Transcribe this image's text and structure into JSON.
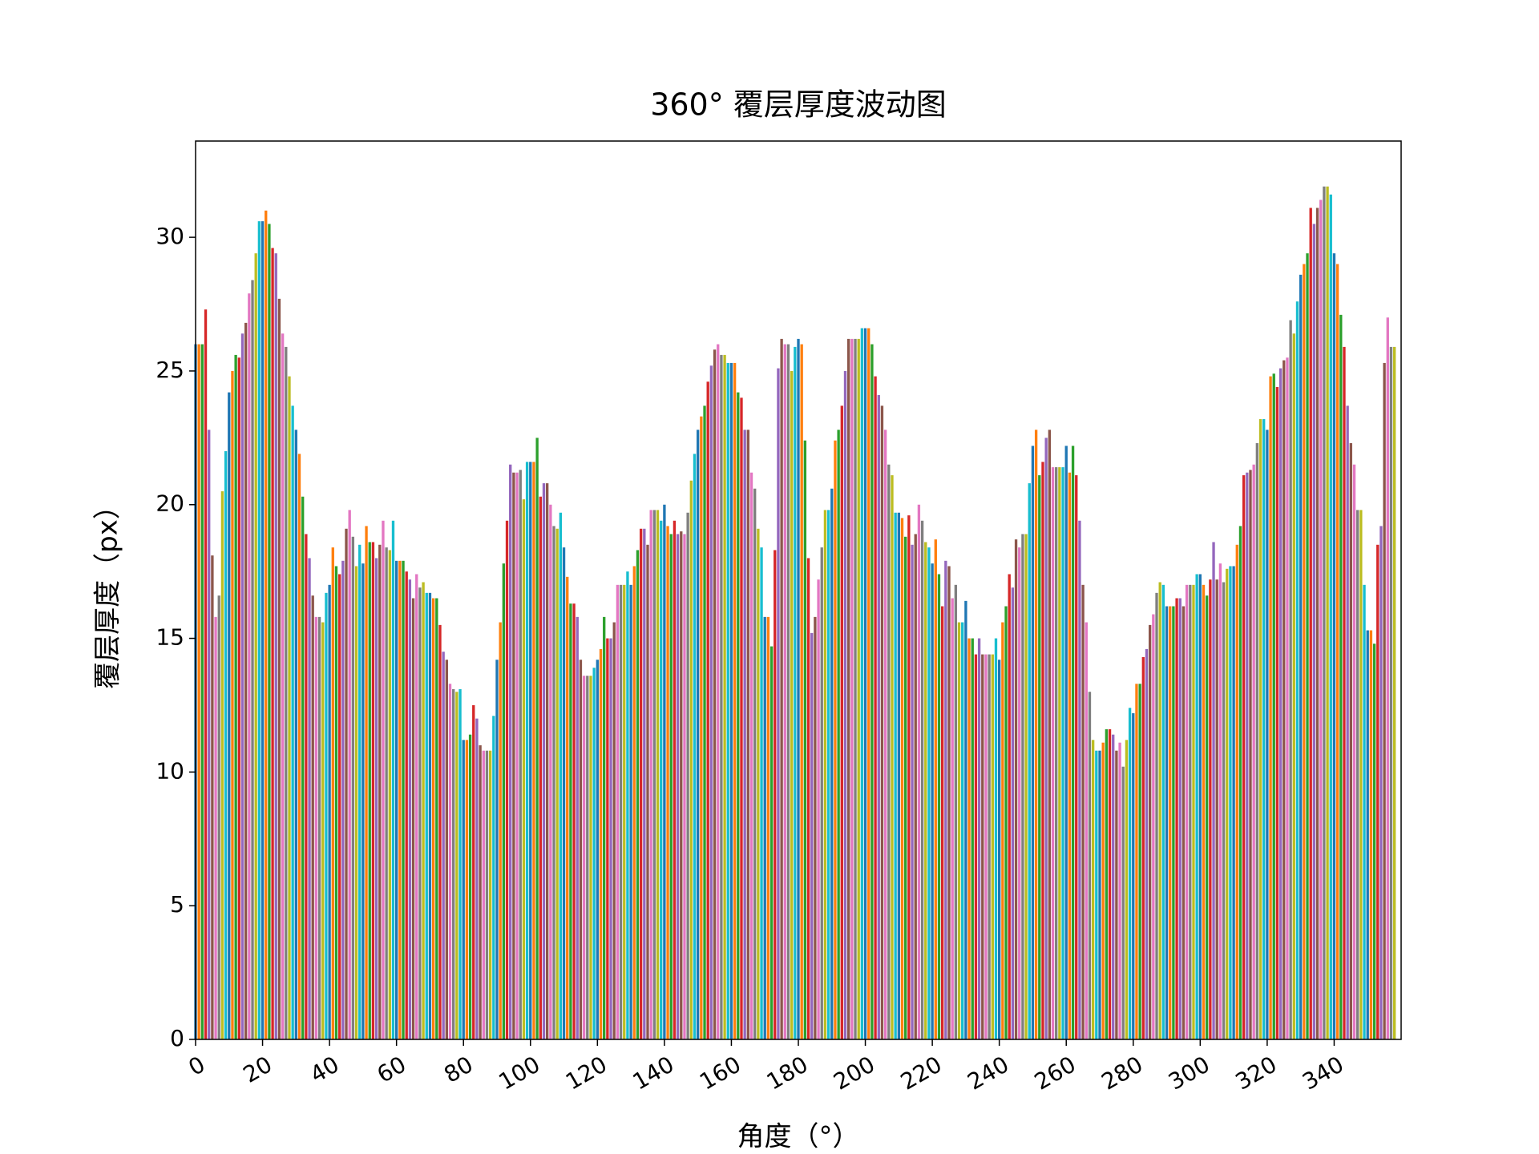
{
  "chart_data": {
    "type": "bar",
    "title": "360° 覆层厚度波动图",
    "x_label": "角度（°）",
    "y_label": "覆层厚度（px）",
    "colors": [
      "#1f77b4",
      "#ff7f0e",
      "#2ca02c",
      "#d62728",
      "#9467bd",
      "#8c564b",
      "#e377c2",
      "#7f7f7f",
      "#bcbd22",
      "#17becf"
    ],
    "xlim": [
      0,
      360
    ],
    "xticks": [
      0,
      20,
      40,
      60,
      80,
      100,
      120,
      140,
      160,
      180,
      200,
      220,
      240,
      260,
      280,
      300,
      320,
      340
    ],
    "ylim": [
      0,
      33.6
    ],
    "yticks": [
      0,
      5,
      10,
      15,
      20,
      25,
      30
    ],
    "grid": false,
    "values": [
      26,
      26,
      26,
      27.3,
      22.8,
      18.1,
      15.8,
      16.6,
      20.5,
      22,
      24.2,
      25,
      25.6,
      25.5,
      26.4,
      26.8,
      27.9,
      28.4,
      29.4,
      30.6,
      30.6,
      31,
      30.5,
      29.6,
      29.4,
      27.7,
      26.4,
      25.9,
      24.8,
      23.7,
      22.8,
      21.9,
      20.3,
      18.9,
      18,
      16.6,
      15.8,
      15.8,
      15.6,
      16.7,
      17,
      18.4,
      17.7,
      17.4,
      17.9,
      19.1,
      19.8,
      18.8,
      17.7,
      18.5,
      17.8,
      19.2,
      18.6,
      18.6,
      18,
      18.5,
      19.4,
      18.4,
      18.3,
      19.4,
      17.9,
      17.9,
      17.9,
      17.5,
      17.2,
      16.5,
      17.4,
      16.9,
      17.1,
      16.7,
      16.7,
      16.5,
      16.5,
      15.5,
      14.5,
      14.2,
      13.3,
      13.1,
      13,
      13.1,
      11.2,
      11.2,
      11.4,
      12.5,
      12,
      11,
      10.8,
      10.8,
      10.8,
      12.1,
      14.2,
      15.6,
      17.8,
      19.4,
      21.5,
      21.2,
      21.2,
      21.3,
      20.2,
      21.6,
      21.6,
      21.6,
      22.5,
      20.3,
      20.8,
      20.8,
      20,
      19.2,
      19.1,
      19.7,
      18.4,
      17.3,
      16.3,
      16.3,
      15.8,
      14.2,
      13.6,
      13.6,
      13.6,
      13.9,
      14.2,
      14.6,
      15.8,
      15,
      15,
      15.6,
      17,
      17,
      17,
      17.5,
      17,
      17.7,
      18.3,
      19.1,
      19.1,
      18.5,
      19.8,
      19.8,
      19.8,
      19.4,
      20,
      19.2,
      18.9,
      19.4,
      18.9,
      19,
      18.9,
      19.7,
      20.9,
      21.9,
      22.8,
      23.3,
      23.7,
      24.6,
      25.2,
      25.8,
      26,
      25.6,
      25.6,
      25.3,
      25.3,
      25.3,
      24.2,
      24,
      22.8,
      22.8,
      21.2,
      20.6,
      19.1,
      18.4,
      15.8,
      15.8,
      14.7,
      18.3,
      25.1,
      26.2,
      26,
      26,
      25,
      25.9,
      26.2,
      26,
      22.4,
      18,
      15.2,
      15.8,
      17.2,
      18.4,
      19.8,
      19.8,
      20.6,
      22.4,
      22.8,
      23.7,
      25,
      26.2,
      26.2,
      26.2,
      26.2,
      26.6,
      26.6,
      26.6,
      26,
      24.8,
      24.1,
      23.7,
      22.8,
      21.5,
      21.1,
      19.7,
      19.7,
      19.5,
      18.8,
      19.6,
      18.5,
      18.9,
      20,
      19.4,
      18.6,
      18.4,
      17.8,
      18.7,
      17.4,
      16.2,
      17.9,
      17.7,
      16.5,
      17,
      15.6,
      15.6,
      16.4,
      15,
      15,
      14.4,
      15,
      14.4,
      14.4,
      14.4,
      14.4,
      15,
      14.2,
      15.6,
      16.2,
      17.4,
      16.9,
      18.7,
      18.4,
      18.9,
      18.9,
      20.8,
      22.2,
      22.8,
      21.1,
      21.6,
      22.5,
      22.8,
      21.4,
      21.4,
      21.4,
      21.4,
      22.2,
      21.2,
      22.2,
      21.1,
      19.4,
      17,
      15.6,
      13,
      11.2,
      10.8,
      10.8,
      11.1,
      11.6,
      11.6,
      11.4,
      10.8,
      11.1,
      10.2,
      11.2,
      12.4,
      12.2,
      13.3,
      13.3,
      14.3,
      14.6,
      15.5,
      15.9,
      16.7,
      17.1,
      17,
      16.2,
      16.2,
      16.2,
      16.5,
      16.5,
      16.2,
      17,
      17,
      17,
      17.4,
      17.4,
      17,
      16.6,
      17.2,
      18.6,
      17.2,
      17.8,
      17.1,
      17.6,
      17.7,
      17.7,
      18.5,
      19.2,
      21.1,
      21.2,
      21.3,
      21.5,
      22.3,
      23.2,
      23.2,
      22.8,
      24.8,
      24.9,
      24.4,
      25.1,
      25.4,
      25.5,
      26.9,
      26.4,
      27.6,
      28.6,
      29,
      29.4,
      31.1,
      30.5,
      31.1,
      31.4,
      31.9,
      31.9,
      31.6,
      29.4,
      29,
      27.1,
      25.9,
      23.7,
      22.3,
      21.5,
      19.8,
      19.8,
      17,
      15.3,
      15.3,
      14.8,
      18.5,
      19.2,
      25.3,
      27,
      25.9,
      25.9
    ]
  }
}
